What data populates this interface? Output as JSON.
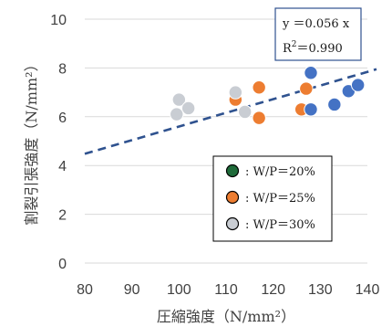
{
  "chart_data": {
    "type": "scatter",
    "xlabel": "圧縮強度（N/mm²）",
    "ylabel": "割裂引張強度（N/mm²）",
    "xlim": [
      80,
      140
    ],
    "ylim": [
      0,
      10
    ],
    "xticks": [
      "80",
      "90",
      "100",
      "110",
      "120",
      "130",
      "140"
    ],
    "yticks": [
      "0",
      "2",
      "4",
      "6",
      "8",
      "10"
    ],
    "grid": true,
    "legend_position": "bottom-right",
    "series": [
      {
        "name": ": W/P＝20%",
        "color": "#1f6b3a",
        "points": []
      },
      {
        "name": ": W/P＝25%",
        "color": "#ed7d31",
        "points": [
          [
            112,
            6.7
          ],
          [
            117,
            7.2
          ],
          [
            117,
            5.95
          ],
          [
            126,
            6.3
          ],
          [
            127,
            7.15
          ]
        ]
      },
      {
        "name": ": W/P＝30%",
        "color": "#c9cdd3",
        "points": [
          [
            99.5,
            6.1
          ],
          [
            100,
            6.7
          ],
          [
            102,
            6.35
          ],
          [
            112,
            7.0
          ],
          [
            114,
            6.2
          ]
        ]
      },
      {
        "name": "",
        "color": "#4472c4",
        "points": [
          [
            128,
            7.8
          ],
          [
            128,
            6.3
          ],
          [
            133,
            6.5
          ],
          [
            136,
            7.05
          ],
          [
            138,
            7.3
          ]
        ]
      }
    ],
    "trendline": {
      "slope": 0.056,
      "color": "#2f528f"
    },
    "equation_box": {
      "line1": "y ＝0.056 x",
      "line2_base": "R",
      "line2_sup": "2",
      "line2_rest": "＝0.990"
    }
  }
}
